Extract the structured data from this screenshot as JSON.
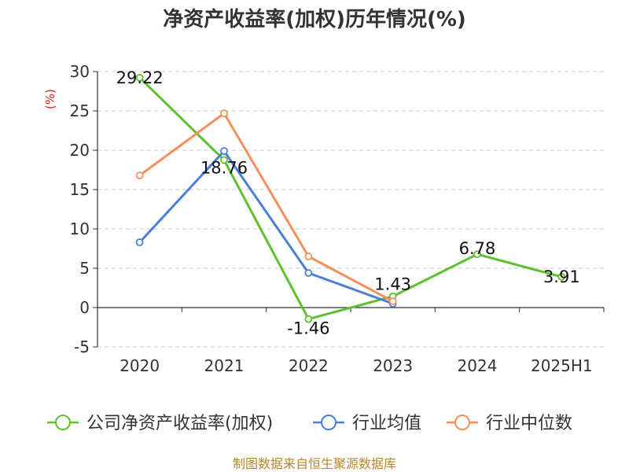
{
  "chart_data": {
    "type": "line",
    "title": "净资产收益率(加权)历年情况(%)",
    "ylabel": "(%)",
    "xlabel": "",
    "categories": [
      "2020",
      "2021",
      "2022",
      "2023",
      "2024",
      "2025H1"
    ],
    "ylim": [
      -5,
      30
    ],
    "yticks": [
      30,
      25,
      20,
      15,
      10,
      5,
      0,
      -5
    ],
    "grid": true,
    "legend_position": "bottom",
    "series": [
      {
        "name": "公司净资产收益率(加权)",
        "color": "#5ec12b",
        "values": [
          29.22,
          18.76,
          -1.46,
          1.43,
          6.78,
          3.91
        ],
        "labels": [
          "29.22",
          "18.76",
          "-1.46",
          "1.43",
          "6.78",
          "3.91"
        ]
      },
      {
        "name": "行业均值",
        "color": "#4a7fd8",
        "values": [
          8.3,
          19.9,
          4.4,
          0.5,
          null,
          null
        ]
      },
      {
        "name": "行业中位数",
        "color": "#f4905c",
        "values": [
          16.8,
          24.7,
          6.5,
          0.8,
          null,
          null
        ]
      }
    ]
  },
  "source": "制图数据来自恒生聚源数据库"
}
